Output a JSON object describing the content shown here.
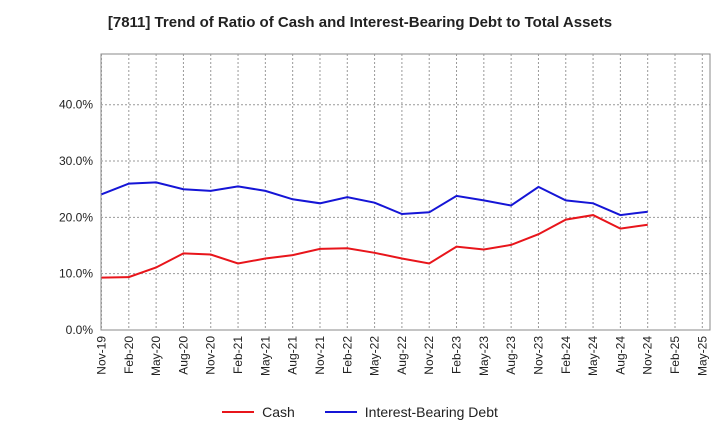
{
  "chart_data": {
    "type": "line",
    "title": "[7811]  Trend of Ratio of Cash and Interest-Bearing Debt to Total Assets",
    "categories": [
      "Nov-19",
      "Feb-20",
      "May-20",
      "Aug-20",
      "Nov-20",
      "Feb-21",
      "May-21",
      "Aug-21",
      "Nov-21",
      "Feb-22",
      "May-22",
      "Aug-22",
      "Nov-22",
      "Feb-23",
      "May-23",
      "Aug-23",
      "Nov-23",
      "Feb-24",
      "May-24",
      "Aug-24",
      "Nov-24",
      "Feb-25",
      "May-25"
    ],
    "y_ticks": [
      "0.0%",
      "10.0%",
      "20.0%",
      "30.0%",
      "40.0%"
    ],
    "ylim": [
      0,
      49
    ],
    "grid": true,
    "legend_position": "bottom",
    "series": [
      {
        "name": "Cash",
        "color": "#e8151b",
        "values": [
          9.3,
          9.4,
          11.1,
          13.6,
          13.4,
          11.8,
          12.7,
          13.3,
          14.4,
          14.5,
          13.7,
          12.7,
          11.8,
          14.8,
          14.3,
          15.1,
          17.0,
          19.6,
          20.4,
          18.0,
          18.7,
          null,
          null
        ]
      },
      {
        "name": "Interest-Bearing Debt",
        "color": "#1515d6",
        "values": [
          24.1,
          26.0,
          26.2,
          25.0,
          24.7,
          25.5,
          24.7,
          23.2,
          22.5,
          23.6,
          22.6,
          20.6,
          20.9,
          23.8,
          23.0,
          22.1,
          25.4,
          23.0,
          22.5,
          20.4,
          21.0,
          null,
          null
        ]
      }
    ]
  }
}
